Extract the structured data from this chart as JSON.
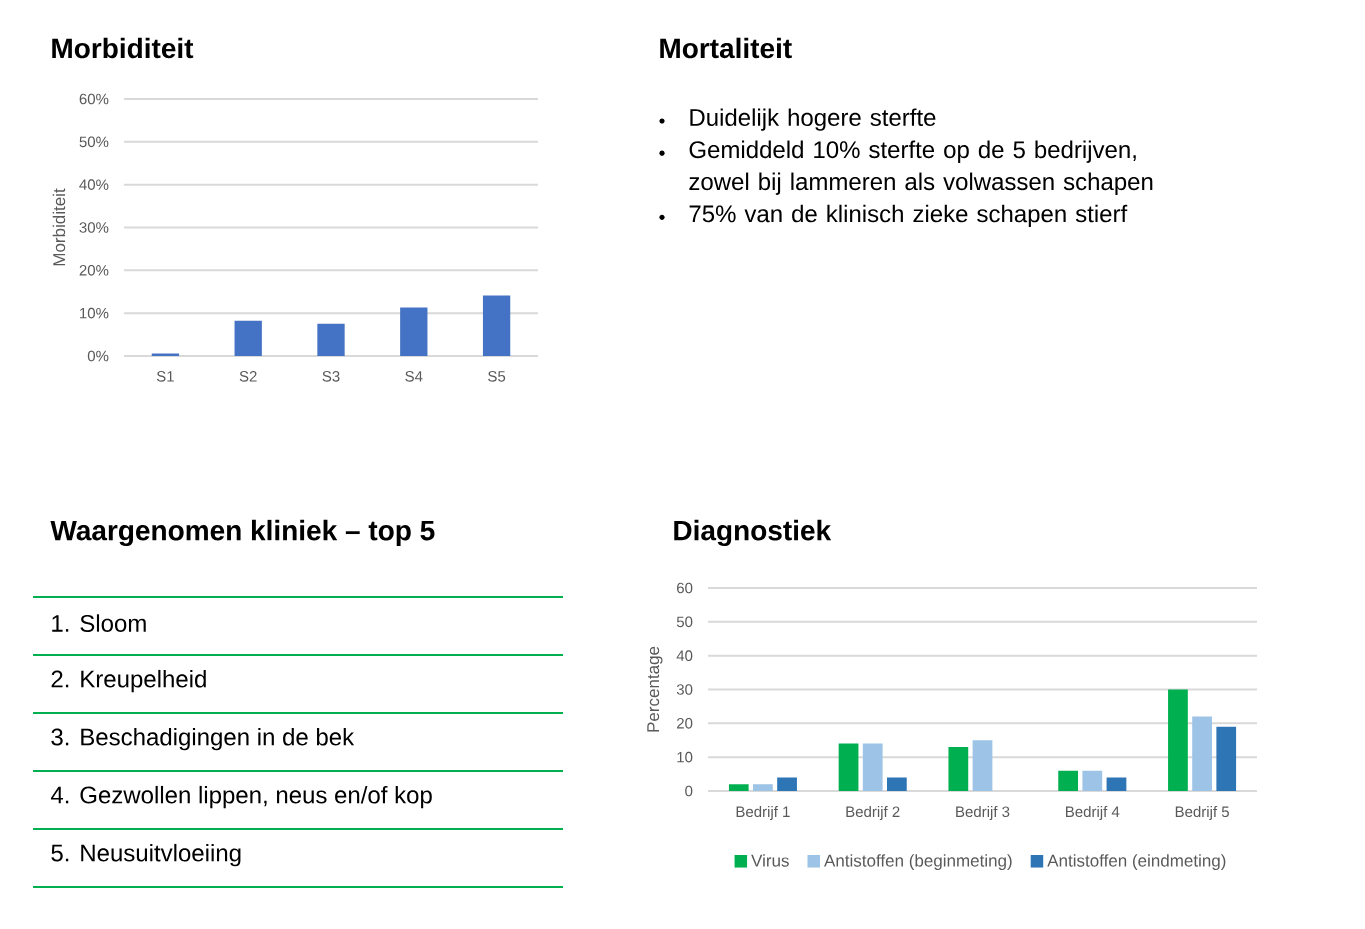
{
  "chart_data": [
    {
      "type": "bar",
      "title": "Morbiditeit",
      "ylabel": "Morbiditeit",
      "categories": [
        "S1",
        "S2",
        "S3",
        "S4",
        "S5"
      ],
      "values": [
        0.6,
        8.2,
        7.5,
        11.3,
        14.1
      ],
      "color": "#4472c4",
      "ylim": [
        0,
        60
      ],
      "yticks": [
        {
          "value": 0,
          "label": "0%"
        },
        {
          "value": 10,
          "label": "10%"
        },
        {
          "value": 20,
          "label": "20%"
        },
        {
          "value": 30,
          "label": "30%"
        },
        {
          "value": 40,
          "label": "40%"
        },
        {
          "value": 50,
          "label": "50%"
        },
        {
          "value": 60,
          "label": "60%"
        }
      ],
      "grid": "y"
    },
    {
      "type": "other",
      "title": "Mortaliteit",
      "annotations": [
        "Duidelijk hogere sterfte",
        "Gemiddeld 10% sterfte op de 5 bedrijven, zowel bij lammeren als volwassen schapen",
        "75% van de klinisch zieke schapen stierf"
      ]
    },
    {
      "type": "other",
      "title": "Waargenomen kliniek – top 5",
      "annotations": [
        "1. Sloom",
        "2. Kreupelheid",
        "3. Beschadigingen in de bek",
        "4. Gezwollen lippen, neus en/of kop",
        "5. Neusuitvloeiing"
      ]
    },
    {
      "type": "bar",
      "title": "Diagnostiek",
      "ylabel": "Percentage",
      "categories": [
        "Bedrijf 1",
        "Bedrijf 2",
        "Bedrijf 3",
        "Bedrijf 4",
        "Bedrijf 5"
      ],
      "series": [
        {
          "name": "Virus",
          "color": "#00b050",
          "values": [
            2,
            14,
            13,
            6,
            30
          ]
        },
        {
          "name": "Antistoffen (beginmeting)",
          "color": "#9dc3e6",
          "values": [
            2,
            14,
            15,
            6,
            22
          ]
        },
        {
          "name": "Antistoffen (eindmeting)",
          "color": "#2e75b6",
          "values": [
            4,
            4,
            0,
            4,
            19
          ]
        }
      ],
      "ylim": [
        0,
        60
      ],
      "yticks": [
        0,
        10,
        20,
        30,
        40,
        50,
        60
      ],
      "grid": "y",
      "legend": "bottom"
    }
  ]
}
